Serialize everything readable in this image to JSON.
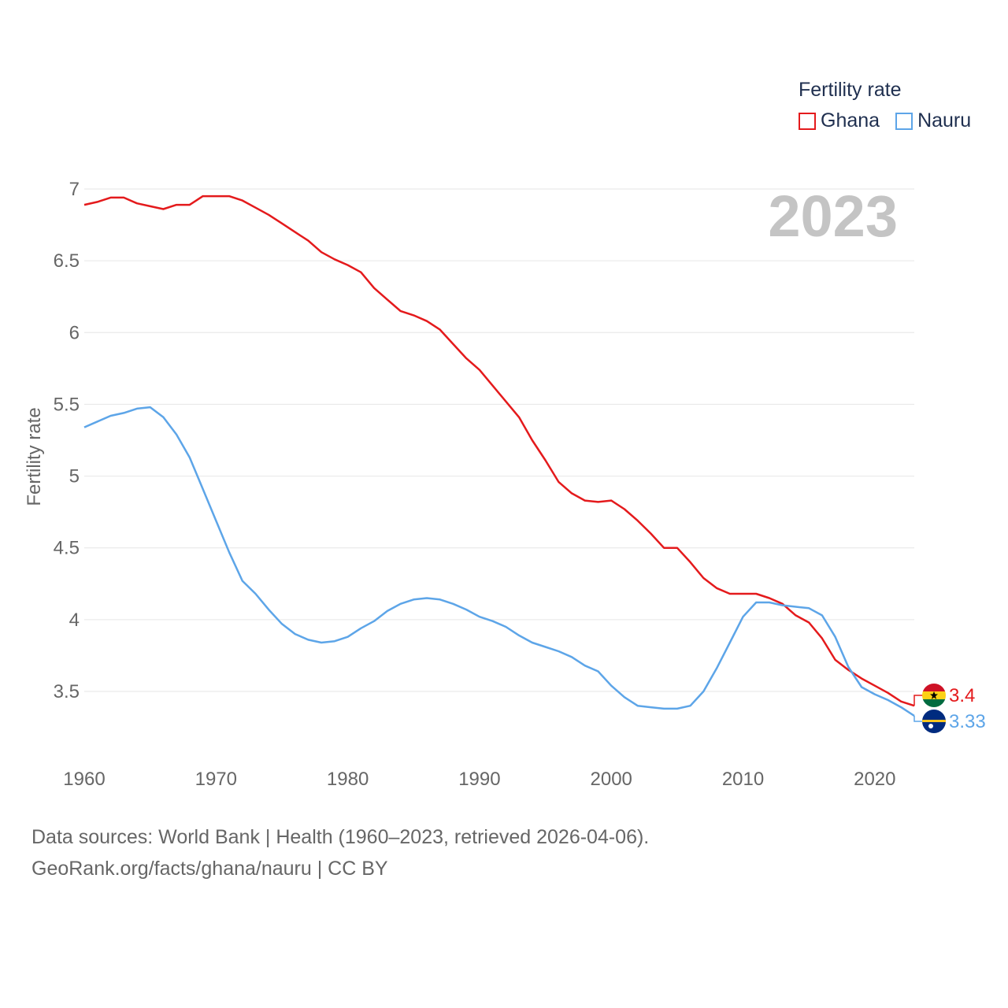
{
  "chart_data": {
    "type": "line",
    "ylabel": "Fertility rate",
    "year_label": "2023",
    "x_ticks": [
      "1960",
      "1970",
      "1980",
      "1990",
      "2000",
      "2010",
      "2020"
    ],
    "y_ticks": [
      "3.5",
      "4",
      "4.5",
      "5",
      "5.5",
      "6",
      "6.5",
      "7"
    ],
    "xlim": [
      1960,
      2023
    ],
    "ylim": [
      3.2,
      7.0
    ],
    "legend": {
      "title": "Fertility rate",
      "position": "top-right"
    },
    "series": [
      {
        "name": "Ghana",
        "color": "#e41a1c",
        "end_label": "3.4",
        "x": [
          1960,
          1961,
          1962,
          1963,
          1964,
          1965,
          1966,
          1967,
          1968,
          1969,
          1970,
          1971,
          1972,
          1973,
          1974,
          1975,
          1976,
          1977,
          1978,
          1979,
          1980,
          1981,
          1982,
          1983,
          1984,
          1985,
          1986,
          1987,
          1988,
          1989,
          1990,
          1991,
          1992,
          1993,
          1994,
          1995,
          1996,
          1997,
          1998,
          1999,
          2000,
          2001,
          2002,
          2003,
          2004,
          2005,
          2006,
          2007,
          2008,
          2009,
          2010,
          2011,
          2012,
          2013,
          2014,
          2015,
          2016,
          2017,
          2018,
          2019,
          2020,
          2021,
          2022,
          2023
        ],
        "values": [
          6.89,
          6.91,
          6.94,
          6.94,
          6.9,
          6.88,
          6.86,
          6.89,
          6.89,
          6.95,
          6.95,
          6.95,
          6.92,
          6.87,
          6.82,
          6.76,
          6.7,
          6.64,
          6.56,
          6.51,
          6.47,
          6.42,
          6.31,
          6.23,
          6.15,
          6.12,
          6.08,
          6.02,
          5.92,
          5.82,
          5.74,
          5.63,
          5.52,
          5.41,
          5.25,
          5.11,
          4.96,
          4.88,
          4.83,
          4.82,
          4.83,
          4.77,
          4.69,
          4.6,
          4.5,
          4.5,
          4.4,
          4.29,
          4.22,
          4.18,
          4.18,
          4.18,
          4.15,
          4.11,
          4.03,
          3.98,
          3.87,
          3.72,
          3.65,
          3.59,
          3.54,
          3.49,
          3.43,
          3.4
        ]
      },
      {
        "name": "Nauru",
        "color": "#5da5e8",
        "end_label": "3.33",
        "x": [
          1960,
          1961,
          1962,
          1963,
          1964,
          1965,
          1966,
          1967,
          1968,
          1969,
          1970,
          1971,
          1972,
          1973,
          1974,
          1975,
          1976,
          1977,
          1978,
          1979,
          1980,
          1981,
          1982,
          1983,
          1984,
          1985,
          1986,
          1987,
          1988,
          1989,
          1990,
          1991,
          1992,
          1993,
          1994,
          1995,
          1996,
          1997,
          1998,
          1999,
          2000,
          2001,
          2002,
          2003,
          2004,
          2005,
          2006,
          2007,
          2008,
          2009,
          2010,
          2011,
          2012,
          2013,
          2014,
          2015,
          2016,
          2017,
          2018,
          2019,
          2020,
          2021,
          2022,
          2023
        ],
        "values": [
          5.34,
          5.38,
          5.42,
          5.44,
          5.47,
          5.48,
          5.41,
          5.29,
          5.13,
          4.91,
          4.69,
          4.47,
          4.27,
          4.18,
          4.07,
          3.97,
          3.9,
          3.86,
          3.84,
          3.85,
          3.88,
          3.94,
          3.99,
          4.06,
          4.11,
          4.14,
          4.15,
          4.14,
          4.11,
          4.07,
          4.02,
          3.99,
          3.95,
          3.89,
          3.84,
          3.81,
          3.78,
          3.74,
          3.68,
          3.64,
          3.54,
          3.46,
          3.4,
          3.39,
          3.38,
          3.38,
          3.4,
          3.5,
          3.66,
          3.84,
          4.02,
          4.12,
          4.12,
          4.1,
          4.09,
          4.08,
          4.03,
          3.88,
          3.67,
          3.53,
          3.48,
          3.44,
          3.39,
          3.33
        ]
      }
    ]
  },
  "footer": {
    "line1": "Data sources: World Bank | Health (1960–2023, retrieved 2026-04-06).",
    "line2": "GeoRank.org/facts/ghana/nauru | CC BY"
  }
}
